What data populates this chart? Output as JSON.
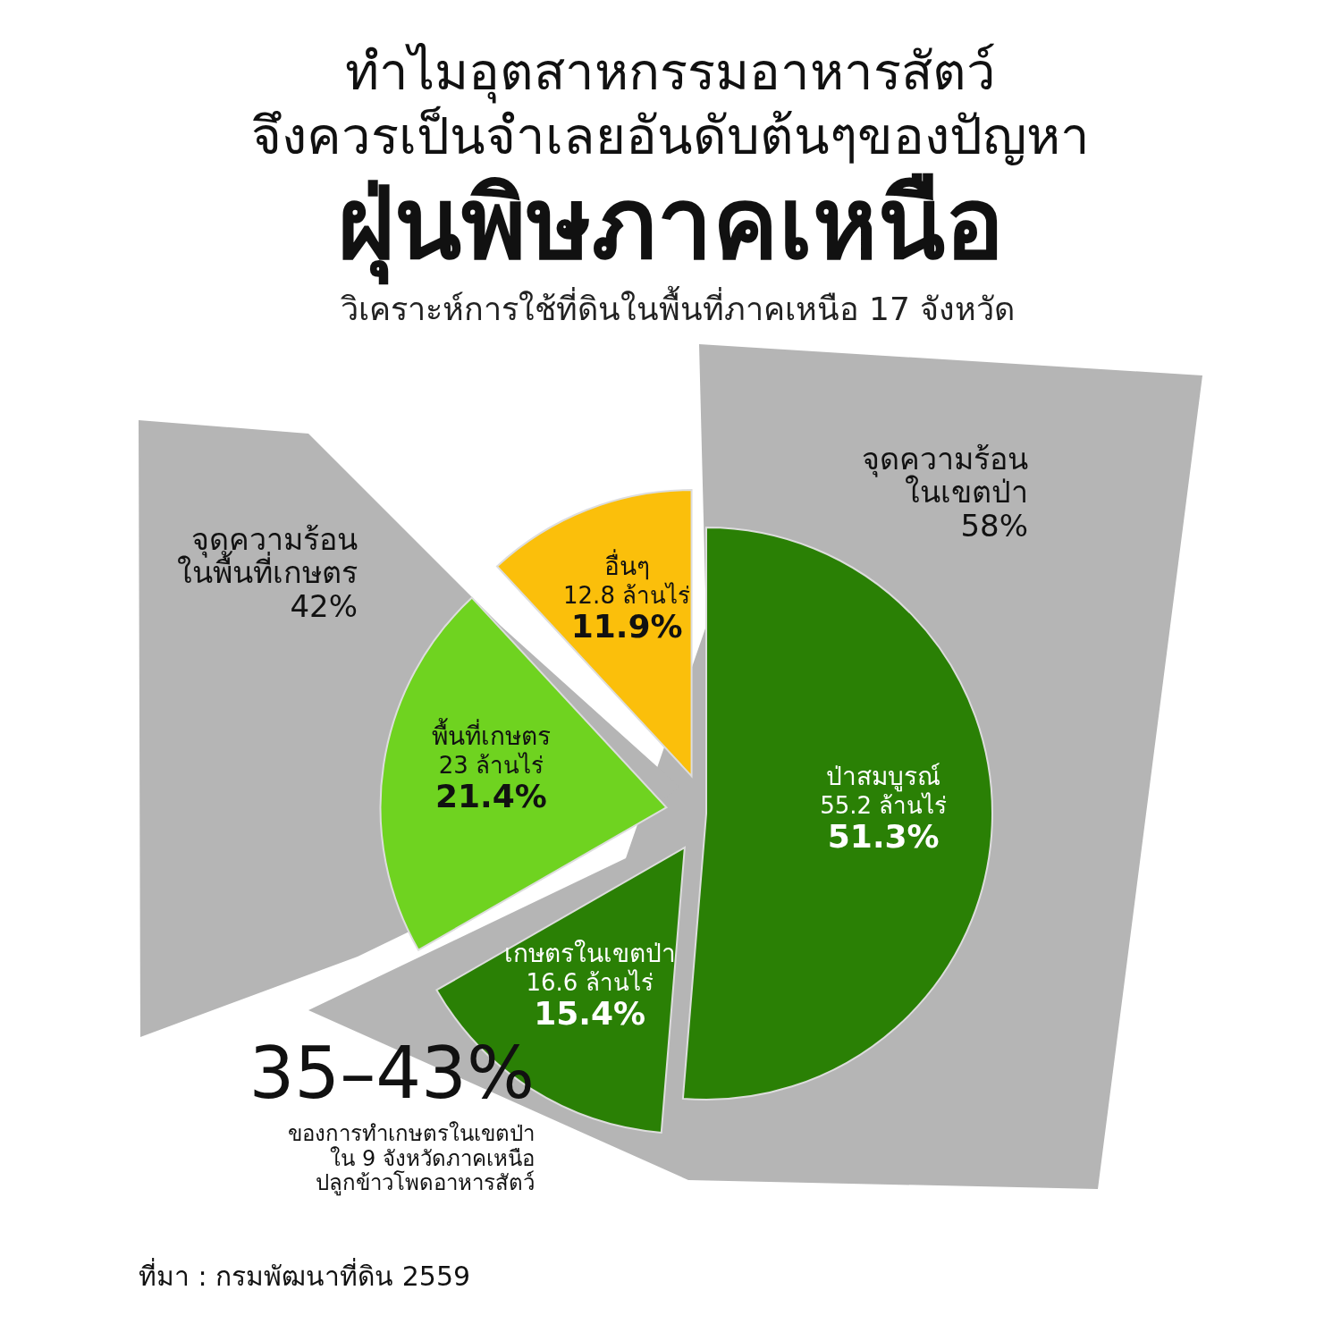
{
  "chart_data": {
    "type": "pie",
    "title": "ทำไมอุตสาหกรรมอาหารสัตว์\nจึงควรเป็นจำเลยอันดับต้นๆของปัญหา\nฝุ่นพิษภาคเหนือ",
    "subtitle": "วิเคราะห์การใช้ที่ดินในพื้นที่ภาคเหนือ 17 จังหวัด",
    "categories": [
      "ป่าสมบูรณ์",
      "เกษตรในเขตป่า",
      "พื้นที่เกษตร",
      "อื่นๆ"
    ],
    "values": [
      51.3,
      15.4,
      21.4,
      11.9
    ],
    "colors": [
      "#2a8005",
      "#2a8005",
      "#6fd320",
      "#fbbf0b"
    ],
    "value_labels": [
      "51.3%",
      "15.4%",
      "21.4%",
      "11.9%"
    ],
    "annotations": [
      {
        "text": "55.2 ล้านไร่",
        "x": "ป่าสมบูรณ์"
      },
      {
        "text": "16.6 ล้านไร่",
        "x": "เกษตรในเขตป่า"
      },
      {
        "text": "23 ล้านไร่",
        "x": "พื้นที่เกษตร"
      },
      {
        "text": "12.8 ล้านไร่",
        "x": "อื่นๆ"
      },
      "จุดความร้อน\nในเขตป่า\n58%",
      "จุดความร้อน\nในพื้นที่เกษตร\n42%",
      "35–43%\nของการทำเกษตรในเขตป่า\nใน 9 จังหวัดภาคเหนือ\nปลูกข้าวโพดอาหารสัตว์",
      "ที่มา : กรมพัฒนาที่ดิน 2559"
    ]
  }
}
